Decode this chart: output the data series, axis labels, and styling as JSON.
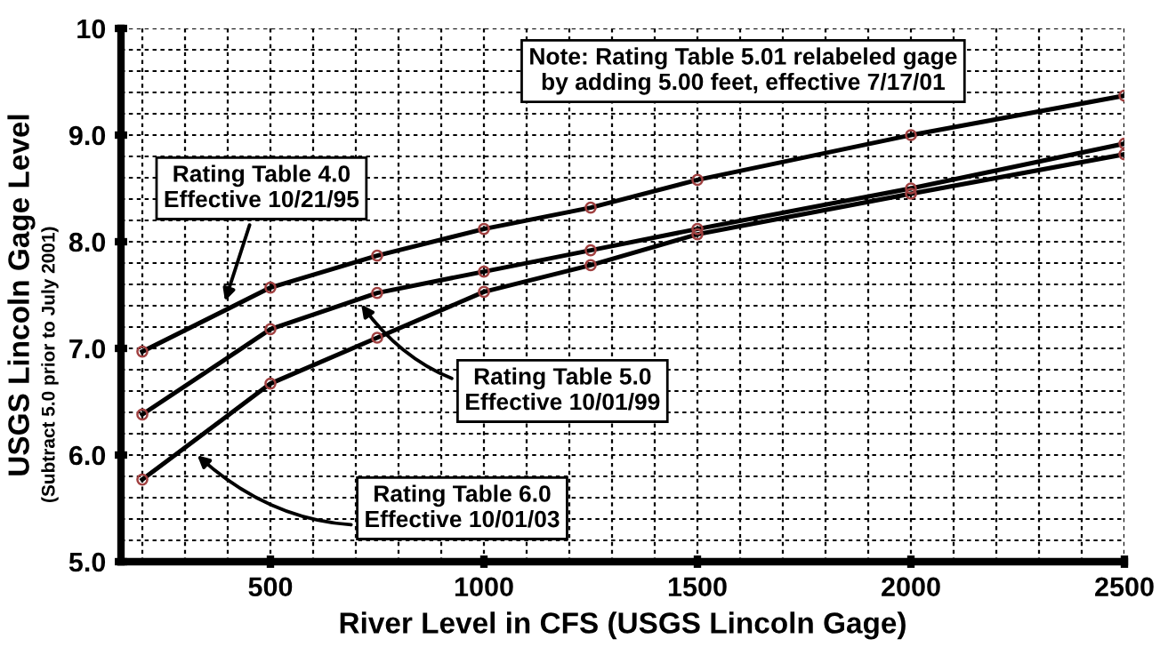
{
  "chart_data": {
    "type": "line",
    "xlabel": "River Level in CFS (USGS Lincoln Gage)",
    "ylabel": "USGS Lincoln Gage Level",
    "x": [
      200,
      500,
      750,
      1000,
      1250,
      1500,
      2000,
      2500
    ],
    "series": [
      {
        "color": "#000000",
        "values": [
          6.97,
          7.57,
          7.87,
          8.12,
          8.32,
          8.58,
          9.0,
          9.37
        ]
      },
      {
        "color": "#000000",
        "values": [
          6.38,
          7.18,
          7.52,
          7.72,
          7.92,
          8.12,
          8.5,
          8.92
        ]
      },
      {
        "color": "#000000",
        "values": [
          5.77,
          6.67,
          7.1,
          7.53,
          7.78,
          8.07,
          8.45,
          8.82
        ]
      }
    ],
    "marker": "circle",
    "xlim": [
      150,
      2500
    ],
    "ylim": [
      5.0,
      10.0
    ],
    "xticks": [
      500,
      1000,
      1500,
      2000,
      2500
    ],
    "yticks": [
      {
        "value": 5,
        "label": "5.0"
      },
      {
        "value": 6,
        "label": "6.0"
      },
      {
        "value": 7,
        "label": "7.0"
      },
      {
        "value": 8,
        "label": "8.0"
      },
      {
        "value": 9,
        "label": "9.0"
      },
      {
        "value": 10,
        "label": "10"
      }
    ],
    "grid": true,
    "annotations": [
      "(Subtract 5.0 prior to July 2001)",
      "Note: Rating Table 5.01 relabeled gage\nby adding 5.00 feet, effective 7/17/01",
      {
        "text": "Rating Table 4.0\nEffective 10/21/95",
        "x": 390,
        "y": 7.4
      },
      {
        "text": "Rating Table 5.0\nEffective 10/01/99",
        "x": 706,
        "y": 7.45
      },
      {
        "text": "Rating Table 6.0\nEffective 10/01/03",
        "x": 320,
        "y": 6.03
      }
    ]
  }
}
